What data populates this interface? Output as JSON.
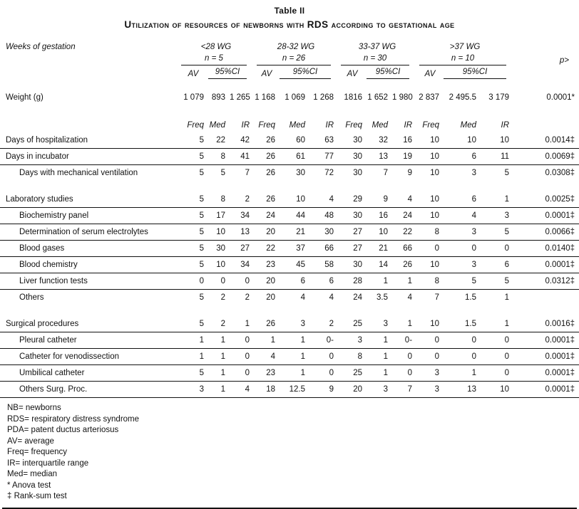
{
  "title": "Table II",
  "subtitle": "Utilization of resources of newborns with RDS according to gestational age",
  "table": {
    "header": {
      "row_label": "Weeks of gestation",
      "p_label": "p>",
      "groups": [
        {
          "label": "<28 WG",
          "n": "n = 5",
          "av_label": "AV",
          "ci_label": "95%CI"
        },
        {
          "label": "28-32 WG",
          "n": "n = 26",
          "av_label": "AV",
          "ci_label": "95%CI"
        },
        {
          "label": "33-37 WG",
          "n": "n = 30",
          "av_label": "AV",
          "ci_label": "95%CI"
        },
        {
          "label": ">37 WG",
          "n": "n = 10",
          "av_label": "AV",
          "ci_label": "95%CI"
        }
      ],
      "stat_labels": [
        "Freq",
        "Med",
        "IR"
      ]
    },
    "weight_row": {
      "label": "Weight (g)",
      "values": [
        "1 079",
        "893",
        "1 265",
        "1 168",
        "1 069",
        "1 268",
        "1816",
        "1 652",
        "1 980",
        "2 837",
        "2 495.5",
        "3 179"
      ],
      "p": "0.0001*"
    },
    "rows": [
      {
        "label": "Days of hospitalization",
        "indent": false,
        "gap_before": false,
        "rule": true,
        "values": [
          "5",
          "22",
          "42",
          "26",
          "60",
          "63",
          "30",
          "32",
          "16",
          "10",
          "10",
          "10"
        ],
        "p": "0.0014‡"
      },
      {
        "label": "Days in incubator",
        "indent": false,
        "gap_before": false,
        "rule": true,
        "values": [
          "5",
          "8",
          "41",
          "26",
          "61",
          "77",
          "30",
          "13",
          "19",
          "10",
          "6",
          "11"
        ],
        "p": "0.0069‡"
      },
      {
        "label": "Days with mechanical ventilation",
        "indent": true,
        "gap_before": false,
        "rule": false,
        "values": [
          "5",
          "5",
          "7",
          "26",
          "30",
          "72",
          "30",
          "7",
          "9",
          "10",
          "3",
          "5"
        ],
        "p": "0.0308‡"
      },
      {
        "label": "Laboratory studies",
        "indent": false,
        "gap_before": true,
        "rule": true,
        "values": [
          "5",
          "8",
          "2",
          "26",
          "10",
          "4",
          "29",
          "9",
          "4",
          "10",
          "6",
          "1"
        ],
        "p": "0.0025‡"
      },
      {
        "label": "Biochemistry panel",
        "indent": true,
        "gap_before": false,
        "rule": true,
        "values": [
          "5",
          "17",
          "34",
          "24",
          "44",
          "48",
          "30",
          "16",
          "24",
          "10",
          "4",
          "3"
        ],
        "p": "0.0001‡"
      },
      {
        "label": "Determination of serum electrolytes",
        "indent": true,
        "gap_before": false,
        "rule": true,
        "values": [
          "5",
          "10",
          "13",
          "20",
          "21",
          "30",
          "27",
          "10",
          "22",
          "8",
          "3",
          "5"
        ],
        "p": "0.0066‡"
      },
      {
        "label": "Blood gases",
        "indent": true,
        "gap_before": false,
        "rule": true,
        "values": [
          "5",
          "30",
          "27",
          "22",
          "37",
          "66",
          "27",
          "21",
          "66",
          "0",
          "0",
          "0"
        ],
        "p": "0.0140‡"
      },
      {
        "label": "Blood chemistry",
        "indent": true,
        "gap_before": false,
        "rule": true,
        "values": [
          "5",
          "10",
          "34",
          "23",
          "45",
          "58",
          "30",
          "14",
          "26",
          "10",
          "3",
          "6"
        ],
        "p": "0.0001‡"
      },
      {
        "label": "Liver function tests",
        "indent": true,
        "gap_before": false,
        "rule": true,
        "values": [
          "0",
          "0",
          "0",
          "20",
          "6",
          "6",
          "28",
          "1",
          "1",
          "8",
          "5",
          "5"
        ],
        "p": "0.0312‡"
      },
      {
        "label": "Others",
        "indent": true,
        "gap_before": false,
        "rule": false,
        "values": [
          "5",
          "2",
          "2",
          "20",
          "4",
          "4",
          "24",
          "3.5",
          "4",
          "7",
          "1.5",
          "1"
        ],
        "p": ""
      },
      {
        "label": "Surgical procedures",
        "indent": false,
        "gap_before": true,
        "rule": true,
        "values": [
          "5",
          "2",
          "1",
          "26",
          "3",
          "2",
          "25",
          "3",
          "1",
          "10",
          "1.5",
          "1"
        ],
        "p": "0.0016‡"
      },
      {
        "label": "Pleural catheter",
        "indent": true,
        "gap_before": false,
        "rule": true,
        "values": [
          "1",
          "1",
          "0",
          "1",
          "1",
          "0-",
          "3",
          "1",
          "0-",
          "0",
          "0",
          "0"
        ],
        "p": "0.0001‡"
      },
      {
        "label": "Catheter for venodissection",
        "indent": true,
        "gap_before": false,
        "rule": true,
        "values": [
          "1",
          "1",
          "0",
          "4",
          "1",
          "0",
          "8",
          "1",
          "0",
          "0",
          "0",
          "0"
        ],
        "p": "0.0001‡"
      },
      {
        "label": "Umbilical catheter",
        "indent": true,
        "gap_before": false,
        "rule": true,
        "values": [
          "5",
          "1",
          "0",
          "23",
          "1",
          "0",
          "25",
          "1",
          "0",
          "3",
          "1",
          "0"
        ],
        "p": "0.0001‡"
      },
      {
        "label": "Others Surg. Proc.",
        "indent": true,
        "gap_before": false,
        "rule": true,
        "values": [
          "3",
          "1",
          "4",
          "18",
          "12.5",
          "9",
          "20",
          "3",
          "7",
          "3",
          "13",
          "10"
        ],
        "p": "0.0001‡"
      }
    ]
  },
  "footnotes": [
    "NB= newborns",
    "RDS= respiratory distress syndrome",
    "PDA= patent ductus arteriosus",
    "AV= average",
    "Freq= frequency",
    "IR= interquartile range",
    "Med= median",
    "* Anova test",
    "‡ Rank-sum test"
  ]
}
